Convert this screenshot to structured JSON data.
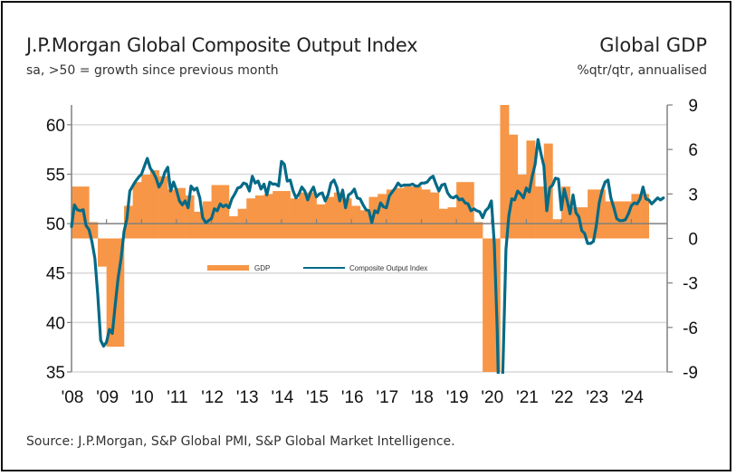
{
  "header": {
    "title": "J.P.Morgan Global Composite Output Index",
    "subtitle": "sa, >50 = growth since previous month",
    "right_title": "Global GDP",
    "right_subtitle": "%qtr/qtr, annualised"
  },
  "footer": {
    "source": "Source: J.P.Morgan, S&P Global PMI, S&P Global Market Intelligence."
  },
  "colors": {
    "gdp_bar": "#F79646",
    "composite_line": "#046A86",
    "gridline": "#D9D9D9",
    "axis": "#808080"
  },
  "chart_data": {
    "type": "bar+line",
    "title": "J.P.Morgan Global Composite Output Index",
    "subtitle": "sa, >50 = growth since previous month",
    "right_title": "Global GDP",
    "right_subtitle": "%qtr/qtr, annualised",
    "x_tick_labels": [
      "'08",
      "'09",
      "'10",
      "'11",
      "'12",
      "'13",
      "'14",
      "'15",
      "'16",
      "'17",
      "'18",
      "'19",
      "'20",
      "'21",
      "'22",
      "'23",
      "'24"
    ],
    "left_axis": {
      "label": "Composite Output Index",
      "ylim": [
        35,
        62
      ],
      "ticks": [
        35,
        40,
        45,
        50,
        55,
        60
      ]
    },
    "right_axis": {
      "label": "GDP %qtr/qtr annualised",
      "ylim": [
        -9,
        9
      ],
      "ticks": [
        -9,
        -6,
        -3,
        0,
        3,
        6,
        9
      ]
    },
    "grid": true,
    "legend": {
      "position": "center",
      "entries": [
        "GDP",
        "Composite Output Index"
      ]
    },
    "series": [
      {
        "name": "GDP",
        "type": "bar",
        "axis": "right",
        "x_start_year": 2008.0,
        "step_years": 0.25,
        "values": [
          3.5,
          3.5,
          1.1,
          -1.9,
          -7.3,
          -7.3,
          2.2,
          3.8,
          4.3,
          4.6,
          4.2,
          3.3,
          3.4,
          2.9,
          1.8,
          2.5,
          3.6,
          3.6,
          1.5,
          2.0,
          2.7,
          2.9,
          3.0,
          3.2,
          3.2,
          2.7,
          3.1,
          3.1,
          2.3,
          2.8,
          3.1,
          2.7,
          2.2,
          1.9,
          2.8,
          3.0,
          3.3,
          3.4,
          3.5,
          3.5,
          3.3,
          3.1,
          2.0,
          2.1,
          3.8,
          3.8,
          1.1,
          -9.0,
          -9.0,
          9.0,
          7.0,
          4.3,
          6.6,
          3.5,
          6.4,
          1.3,
          3.5,
          2.1,
          2.1,
          3.3,
          3.3,
          2.5,
          2.5,
          2.5,
          3.0,
          3.0
        ]
      },
      {
        "name": "Composite Output Index",
        "type": "line",
        "axis": "left",
        "x_start_year": 2008.0,
        "step_years": 0.08333,
        "values": [
          49.7,
          51.9,
          51.4,
          51.3,
          51.4,
          49.8,
          49.4,
          48.2,
          46.5,
          42.8,
          38.2,
          37.6,
          38.0,
          39.3,
          38.9,
          41.8,
          44.5,
          46.5,
          49.2,
          50.5,
          53.3,
          53.8,
          54.3,
          54.7,
          55.0,
          55.8,
          56.6,
          55.6,
          55.2,
          54.6,
          53.7,
          54.2,
          55.2,
          55.7,
          53.3,
          54.2,
          53.4,
          52.3,
          51.9,
          52.3,
          51.6,
          53.8,
          53.4,
          53.6,
          52.6,
          50.6,
          50.1,
          50.3,
          50.5,
          51.5,
          51.3,
          52.0,
          51.7,
          51.9,
          51.6,
          52.5,
          53.0,
          53.6,
          53.7,
          54.1,
          54.0,
          53.3,
          54.8,
          54.1,
          54.3,
          53.5,
          54.0,
          52.9,
          54.2,
          54.0,
          54.0,
          53.8,
          56.3,
          56.0,
          54.3,
          54.4,
          53.3,
          52.6,
          53.0,
          53.7,
          53.3,
          52.4,
          53.2,
          53.7,
          52.7,
          53.0,
          53.1,
          52.3,
          52.9,
          54.1,
          54.4,
          53.7,
          52.3,
          53.4,
          51.6,
          52.9,
          53.1,
          53.5,
          52.6,
          52.5,
          51.9,
          51.4,
          51.3,
          50.1,
          51.3,
          51.1,
          52.1,
          51.7,
          51.6,
          52.8,
          53.2,
          53.6,
          54.1,
          53.8,
          53.9,
          53.9,
          53.9,
          54.0,
          53.8,
          53.8,
          54.1,
          54.1,
          54.2,
          54.6,
          54.8,
          54.0,
          53.3,
          53.9,
          54.0,
          53.1,
          52.7,
          52.6,
          52.8,
          52.4,
          52.5,
          52.1,
          52.0,
          51.3,
          51.5,
          51.3,
          51.2,
          50.6,
          51.3,
          51.6,
          52.3,
          48.0,
          39.4,
          26.0,
          36.0,
          47.4,
          50.8,
          52.5,
          52.4,
          53.3,
          53.0,
          52.6,
          53.6,
          53.2,
          54.8,
          56.0,
          58.5,
          57.1,
          55.8,
          51.3,
          53.6,
          53.9,
          54.6,
          54.5,
          51.4,
          53.5,
          52.3,
          51.0,
          52.9,
          51.1,
          50.7,
          49.3,
          49.0,
          48.0,
          48.0,
          48.2,
          49.8,
          52.1,
          53.4,
          54.2,
          54.4,
          52.6,
          51.6,
          50.5,
          50.3,
          50.3,
          50.4,
          51.0,
          51.8,
          52.1,
          52.0,
          52.5,
          53.7,
          52.5,
          52.4,
          52.0,
          52.3,
          52.6,
          52.4,
          52.6
        ]
      }
    ]
  }
}
